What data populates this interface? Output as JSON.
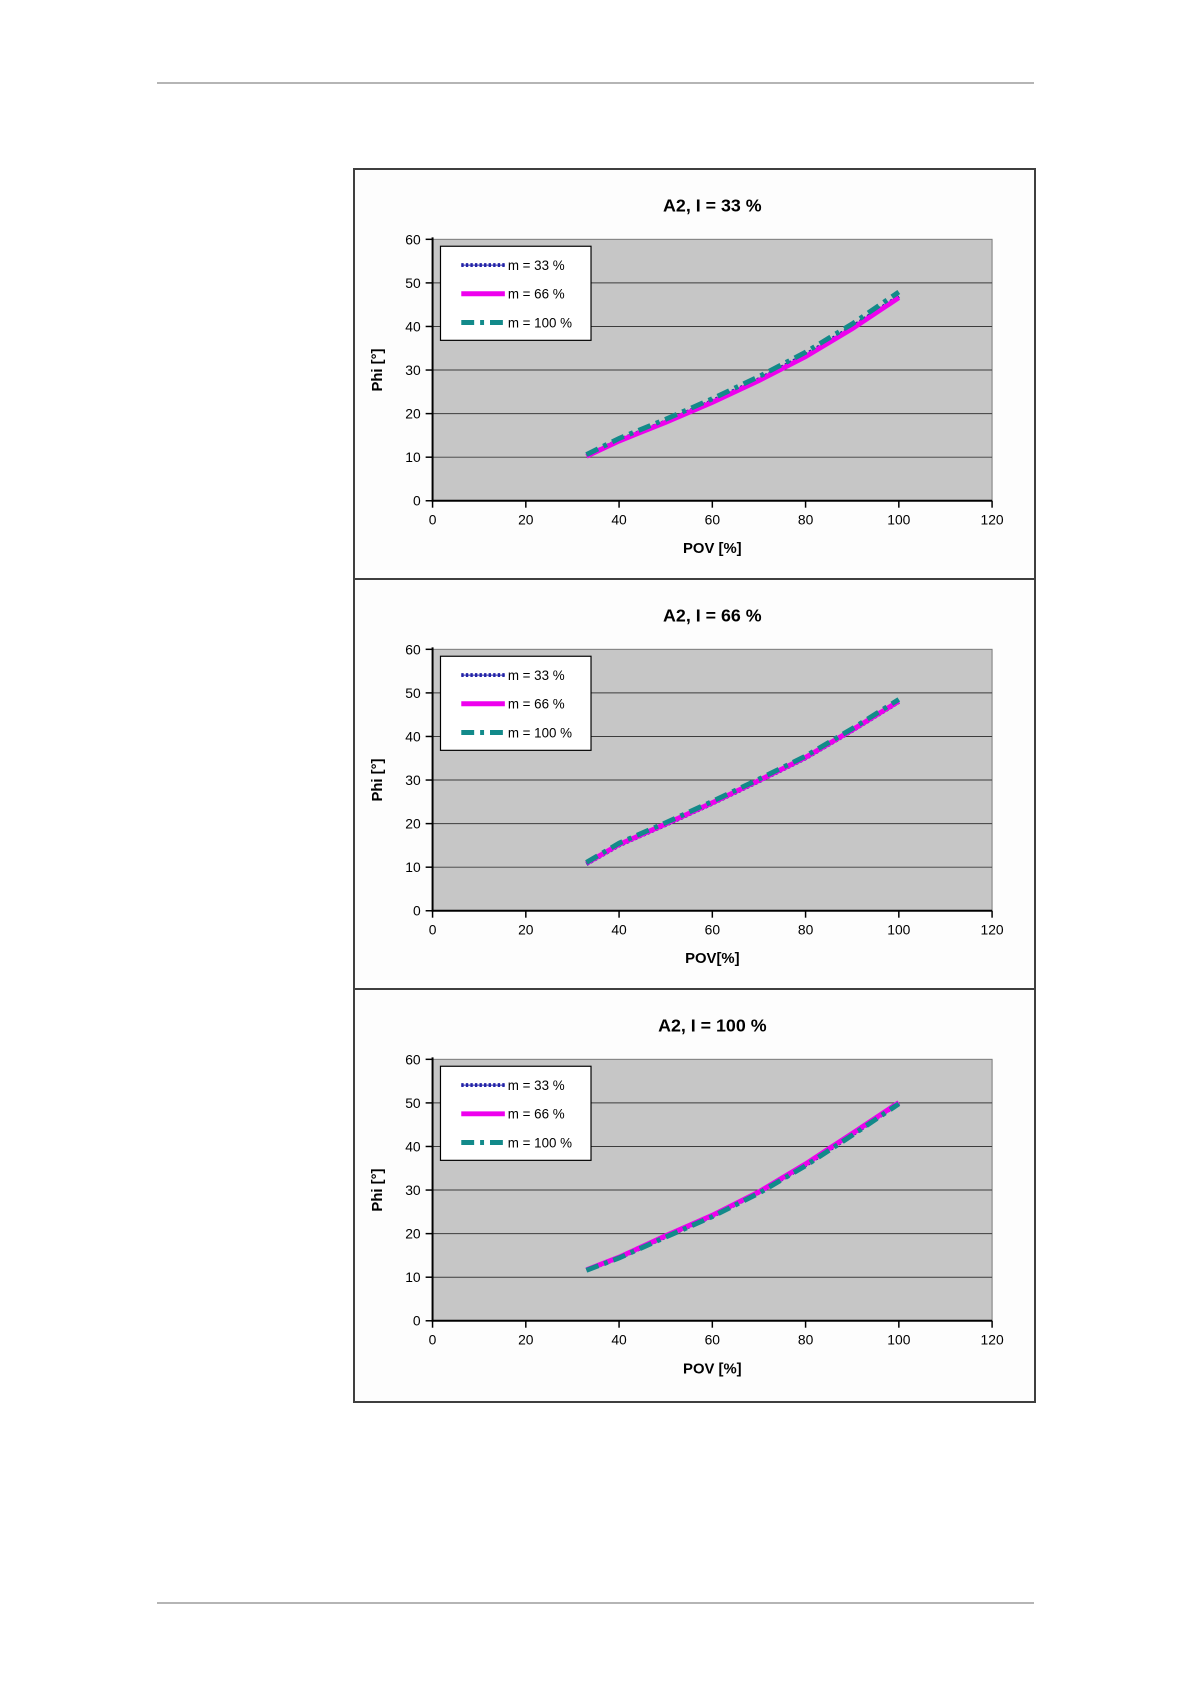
{
  "page": {
    "background": "#ffffff",
    "rule_color": "#b5b5b5"
  },
  "chart_data": [
    {
      "type": "line",
      "title": "A2,  I = 33 %",
      "xlabel": "POV [%]",
      "ylabel": "Phi [°]",
      "xlim": [
        0,
        120
      ],
      "ylim": [
        0,
        60
      ],
      "x_ticks": [
        0,
        20,
        40,
        60,
        80,
        100,
        120
      ],
      "y_ticks": [
        0,
        10,
        20,
        30,
        40,
        50,
        60
      ],
      "grid": "horizontal",
      "plot_bg": "#c6c6c6",
      "legend_position": "top-left",
      "x": [
        33,
        40,
        50,
        60,
        70,
        80,
        90,
        100
      ],
      "series": [
        {
          "name": "m = 33 %",
          "color": "#2323a8",
          "style": "marker-chain",
          "values": [
            10.3,
            13.9,
            18.2,
            22.9,
            27.9,
            33.5,
            39.9,
            46.9
          ]
        },
        {
          "name": "m = 66 %",
          "color": "#ee00ee",
          "style": "solid",
          "values": [
            10.2,
            13.7,
            18.0,
            22.6,
            27.6,
            33.1,
            39.5,
            46.6
          ]
        },
        {
          "name": "m = 100 %",
          "color": "#128a8a",
          "style": "dashed",
          "values": [
            10.6,
            14.3,
            18.7,
            23.4,
            28.5,
            34.1,
            40.6,
            47.9
          ]
        }
      ]
    },
    {
      "type": "line",
      "title": "A2,  I = 66 %",
      "xlabel": "POV[%]",
      "ylabel": "Phi [°]",
      "xlim": [
        0,
        120
      ],
      "ylim": [
        0,
        60
      ],
      "x_ticks": [
        0,
        20,
        40,
        60,
        80,
        100,
        120
      ],
      "y_ticks": [
        0,
        10,
        20,
        30,
        40,
        50,
        60
      ],
      "grid": "horizontal",
      "plot_bg": "#c6c6c6",
      "legend_position": "top-left",
      "x": [
        33,
        40,
        50,
        60,
        70,
        80,
        90,
        100
      ],
      "series": [
        {
          "name": "m = 33 %",
          "color": "#2323a8",
          "style": "marker-chain",
          "values": [
            10.7,
            15.0,
            19.7,
            24.6,
            29.7,
            35.0,
            41.3,
            47.9
          ]
        },
        {
          "name": "m = 66 %",
          "color": "#ee00ee",
          "style": "solid",
          "values": [
            10.9,
            15.2,
            19.9,
            24.8,
            29.9,
            35.2,
            41.5,
            48.1
          ]
        },
        {
          "name": "m = 100 %",
          "color": "#128a8a",
          "style": "dashed",
          "values": [
            11.1,
            15.5,
            20.2,
            25.1,
            30.2,
            35.5,
            41.8,
            48.5
          ]
        }
      ]
    },
    {
      "type": "line",
      "title": "A2,  I = 100 %",
      "xlabel": "POV [%]",
      "ylabel": "Phi [°]",
      "xlim": [
        0,
        120
      ],
      "ylim": [
        0,
        60
      ],
      "x_ticks": [
        0,
        20,
        40,
        60,
        80,
        100,
        120
      ],
      "y_ticks": [
        0,
        10,
        20,
        30,
        40,
        50,
        60
      ],
      "grid": "horizontal",
      "plot_bg": "#c6c6c6",
      "legend_position": "top-left",
      "x": [
        33,
        40,
        50,
        60,
        70,
        80,
        90,
        100
      ],
      "series": [
        {
          "name": "m = 33 %",
          "color": "#2323a8",
          "style": "marker-chain",
          "values": [
            11.6,
            14.4,
            19.3,
            24.0,
            29.4,
            35.7,
            42.7,
            49.9
          ]
        },
        {
          "name": "m = 66 %",
          "color": "#ee00ee",
          "style": "solid",
          "values": [
            11.7,
            14.6,
            19.5,
            24.2,
            29.6,
            36.0,
            43.0,
            50.1
          ]
        },
        {
          "name": "m = 100 %",
          "color": "#128a8a",
          "style": "dashed",
          "values": [
            11.6,
            14.4,
            19.2,
            23.9,
            29.3,
            35.6,
            42.6,
            49.8
          ]
        }
      ]
    }
  ]
}
